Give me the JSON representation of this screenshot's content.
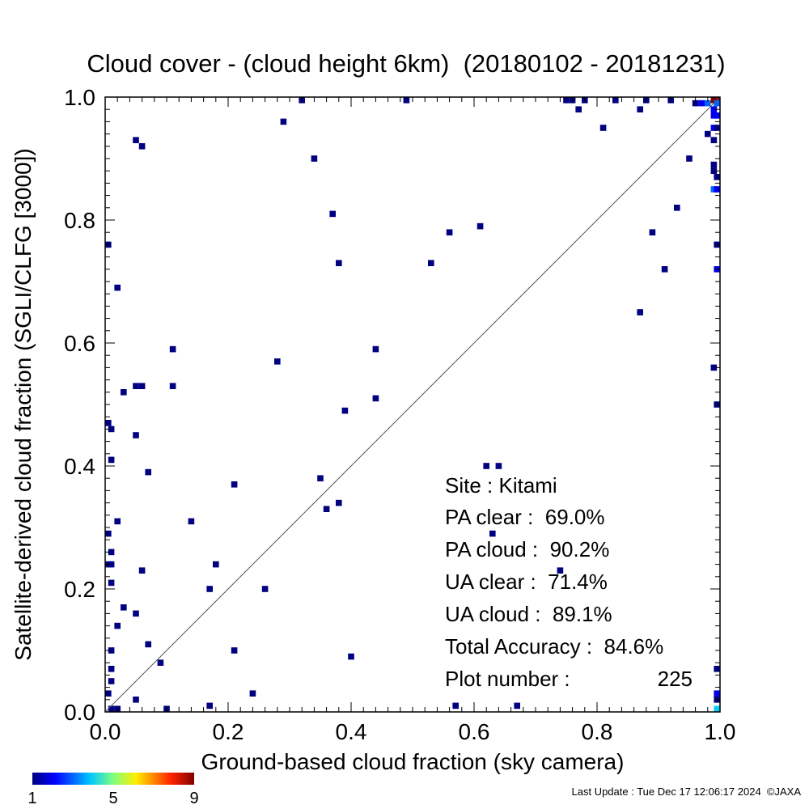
{
  "chart_data": {
    "type": "heatmap",
    "title": "Cloud cover - (cloud height 6km)  (20180102 - 20181231)",
    "xlabel": "Ground-based cloud fraction (sky camera)",
    "ylabel": "Satellite-derived cloud fraction (SGLI/CLFG [3000])",
    "xlim": [
      0,
      1
    ],
    "ylim": [
      0,
      1
    ],
    "x_ticks": [
      "0.0",
      "0.2",
      "0.4",
      "0.6",
      "0.8",
      "1.0"
    ],
    "y_ticks": [
      "0.0",
      "0.2",
      "0.4",
      "0.6",
      "0.8",
      "1.0"
    ],
    "diagonal": true,
    "colorbar": {
      "min_label": "1",
      "mid_label": "5",
      "max_label": "9",
      "min": 1,
      "max": 9
    },
    "points": [
      {
        "x": 0.32,
        "y": 1.0,
        "count": 1
      },
      {
        "x": 0.49,
        "y": 1.0,
        "count": 1
      },
      {
        "x": 0.75,
        "y": 1.0,
        "count": 1
      },
      {
        "x": 0.76,
        "y": 1.0,
        "count": 1
      },
      {
        "x": 0.78,
        "y": 1.0,
        "count": 1
      },
      {
        "x": 0.83,
        "y": 1.0,
        "count": 1
      },
      {
        "x": 0.88,
        "y": 1.0,
        "count": 1
      },
      {
        "x": 0.92,
        "y": 1.0,
        "count": 1
      },
      {
        "x": 0.96,
        "y": 0.99,
        "count": 1
      },
      {
        "x": 0.97,
        "y": 0.99,
        "count": 2
      },
      {
        "x": 0.98,
        "y": 0.99,
        "count": 3
      },
      {
        "x": 0.99,
        "y": 1.0,
        "count": 9
      },
      {
        "x": 1.0,
        "y": 1.0,
        "count": 9
      },
      {
        "x": 1.0,
        "y": 0.99,
        "count": 3
      },
      {
        "x": 0.99,
        "y": 0.98,
        "count": 2
      },
      {
        "x": 0.77,
        "y": 0.98,
        "count": 1
      },
      {
        "x": 0.87,
        "y": 0.98,
        "count": 1
      },
      {
        "x": 0.99,
        "y": 0.97,
        "count": 2
      },
      {
        "x": 1.0,
        "y": 0.97,
        "count": 2
      },
      {
        "x": 0.29,
        "y": 0.96,
        "count": 1
      },
      {
        "x": 0.81,
        "y": 0.95,
        "count": 1
      },
      {
        "x": 0.99,
        "y": 0.95,
        "count": 2
      },
      {
        "x": 1.0,
        "y": 0.95,
        "count": 1
      },
      {
        "x": 0.98,
        "y": 0.94,
        "count": 1
      },
      {
        "x": 0.05,
        "y": 0.93,
        "count": 1
      },
      {
        "x": 0.99,
        "y": 0.93,
        "count": 1
      },
      {
        "x": 0.06,
        "y": 0.92,
        "count": 1
      },
      {
        "x": 0.34,
        "y": 0.9,
        "count": 1
      },
      {
        "x": 0.95,
        "y": 0.9,
        "count": 1
      },
      {
        "x": 0.99,
        "y": 0.89,
        "count": 1
      },
      {
        "x": 0.99,
        "y": 0.88,
        "count": 1
      },
      {
        "x": 1.0,
        "y": 0.87,
        "count": 1
      },
      {
        "x": 0.99,
        "y": 0.85,
        "count": 3
      },
      {
        "x": 1.0,
        "y": 0.85,
        "count": 2
      },
      {
        "x": 0.93,
        "y": 0.82,
        "count": 1
      },
      {
        "x": 0.37,
        "y": 0.81,
        "count": 1
      },
      {
        "x": 0.61,
        "y": 0.79,
        "count": 1
      },
      {
        "x": 0.56,
        "y": 0.78,
        "count": 1
      },
      {
        "x": 0.89,
        "y": 0.78,
        "count": 1
      },
      {
        "x": 0.0,
        "y": 0.76,
        "count": 1
      },
      {
        "x": 1.0,
        "y": 0.76,
        "count": 1
      },
      {
        "x": 0.38,
        "y": 0.73,
        "count": 1
      },
      {
        "x": 0.53,
        "y": 0.73,
        "count": 1
      },
      {
        "x": 0.91,
        "y": 0.72,
        "count": 1
      },
      {
        "x": 1.0,
        "y": 0.72,
        "count": 2
      },
      {
        "x": 0.02,
        "y": 0.69,
        "count": 1
      },
      {
        "x": 0.87,
        "y": 0.65,
        "count": 1
      },
      {
        "x": 0.11,
        "y": 0.59,
        "count": 1
      },
      {
        "x": 0.44,
        "y": 0.59,
        "count": 1
      },
      {
        "x": 0.28,
        "y": 0.57,
        "count": 1
      },
      {
        "x": 0.99,
        "y": 0.56,
        "count": 1
      },
      {
        "x": 0.05,
        "y": 0.53,
        "count": 1
      },
      {
        "x": 0.06,
        "y": 0.53,
        "count": 1
      },
      {
        "x": 0.11,
        "y": 0.53,
        "count": 1
      },
      {
        "x": 0.03,
        "y": 0.52,
        "count": 1
      },
      {
        "x": 0.44,
        "y": 0.51,
        "count": 1
      },
      {
        "x": 1.0,
        "y": 0.5,
        "count": 1
      },
      {
        "x": 0.39,
        "y": 0.49,
        "count": 1
      },
      {
        "x": 0.0,
        "y": 0.47,
        "count": 1
      },
      {
        "x": 0.01,
        "y": 0.46,
        "count": 1
      },
      {
        "x": 0.05,
        "y": 0.45,
        "count": 1
      },
      {
        "x": 0.01,
        "y": 0.41,
        "count": 1
      },
      {
        "x": 0.62,
        "y": 0.4,
        "count": 1
      },
      {
        "x": 0.64,
        "y": 0.4,
        "count": 1
      },
      {
        "x": 0.07,
        "y": 0.39,
        "count": 1
      },
      {
        "x": 0.35,
        "y": 0.38,
        "count": 1
      },
      {
        "x": 0.21,
        "y": 0.37,
        "count": 1
      },
      {
        "x": 0.38,
        "y": 0.34,
        "count": 1
      },
      {
        "x": 0.36,
        "y": 0.33,
        "count": 1
      },
      {
        "x": 0.02,
        "y": 0.31,
        "count": 1
      },
      {
        "x": 0.14,
        "y": 0.31,
        "count": 1
      },
      {
        "x": 0.0,
        "y": 0.29,
        "count": 1
      },
      {
        "x": 0.63,
        "y": 0.29,
        "count": 1
      },
      {
        "x": 0.01,
        "y": 0.26,
        "count": 1
      },
      {
        "x": 0.0,
        "y": 0.24,
        "count": 1
      },
      {
        "x": 0.01,
        "y": 0.24,
        "count": 1
      },
      {
        "x": 0.18,
        "y": 0.24,
        "count": 1
      },
      {
        "x": 0.06,
        "y": 0.23,
        "count": 1
      },
      {
        "x": 0.74,
        "y": 0.23,
        "count": 1
      },
      {
        "x": 0.01,
        "y": 0.21,
        "count": 1
      },
      {
        "x": 0.17,
        "y": 0.2,
        "count": 1
      },
      {
        "x": 0.26,
        "y": 0.2,
        "count": 1
      },
      {
        "x": 0.03,
        "y": 0.17,
        "count": 1
      },
      {
        "x": 0.05,
        "y": 0.16,
        "count": 1
      },
      {
        "x": 0.02,
        "y": 0.14,
        "count": 1
      },
      {
        "x": 0.07,
        "y": 0.11,
        "count": 1
      },
      {
        "x": 0.01,
        "y": 0.1,
        "count": 1
      },
      {
        "x": 0.21,
        "y": 0.1,
        "count": 1
      },
      {
        "x": 0.4,
        "y": 0.09,
        "count": 1
      },
      {
        "x": 0.09,
        "y": 0.08,
        "count": 1
      },
      {
        "x": 0.01,
        "y": 0.07,
        "count": 1
      },
      {
        "x": 1.0,
        "y": 0.07,
        "count": 1
      },
      {
        "x": 0.01,
        "y": 0.05,
        "count": 1
      },
      {
        "x": 0.0,
        "y": 0.03,
        "count": 1
      },
      {
        "x": 0.24,
        "y": 0.03,
        "count": 1
      },
      {
        "x": 1.0,
        "y": 0.03,
        "count": 2
      },
      {
        "x": 0.05,
        "y": 0.02,
        "count": 1
      },
      {
        "x": 1.0,
        "y": 0.02,
        "count": 1
      },
      {
        "x": 0.17,
        "y": 0.01,
        "count": 1
      },
      {
        "x": 0.57,
        "y": 0.01,
        "count": 1
      },
      {
        "x": 0.67,
        "y": 0.01,
        "count": 1
      },
      {
        "x": 0.01,
        "y": 0.0,
        "count": 1
      },
      {
        "x": 0.02,
        "y": 0.0,
        "count": 1
      },
      {
        "x": 0.1,
        "y": 0.0,
        "count": 1
      },
      {
        "x": 1.0,
        "y": 0.0,
        "count": 4
      }
    ]
  },
  "stats": {
    "site": "Site : Kitami",
    "pa_clear": "PA clear :  69.0%",
    "pa_cloud": "PA cloud :  90.2%",
    "ua_clear": "UA clear :  71.4%",
    "ua_cloud": "UA cloud :  89.1%",
    "total_accuracy": "Total Accuracy :  84.6%",
    "plot_number_label": "Plot number :",
    "plot_number_value": "225"
  },
  "footer": {
    "last_update": "Last Update : Tue Dec 17 12:06:17 2024  ©JAXA"
  }
}
